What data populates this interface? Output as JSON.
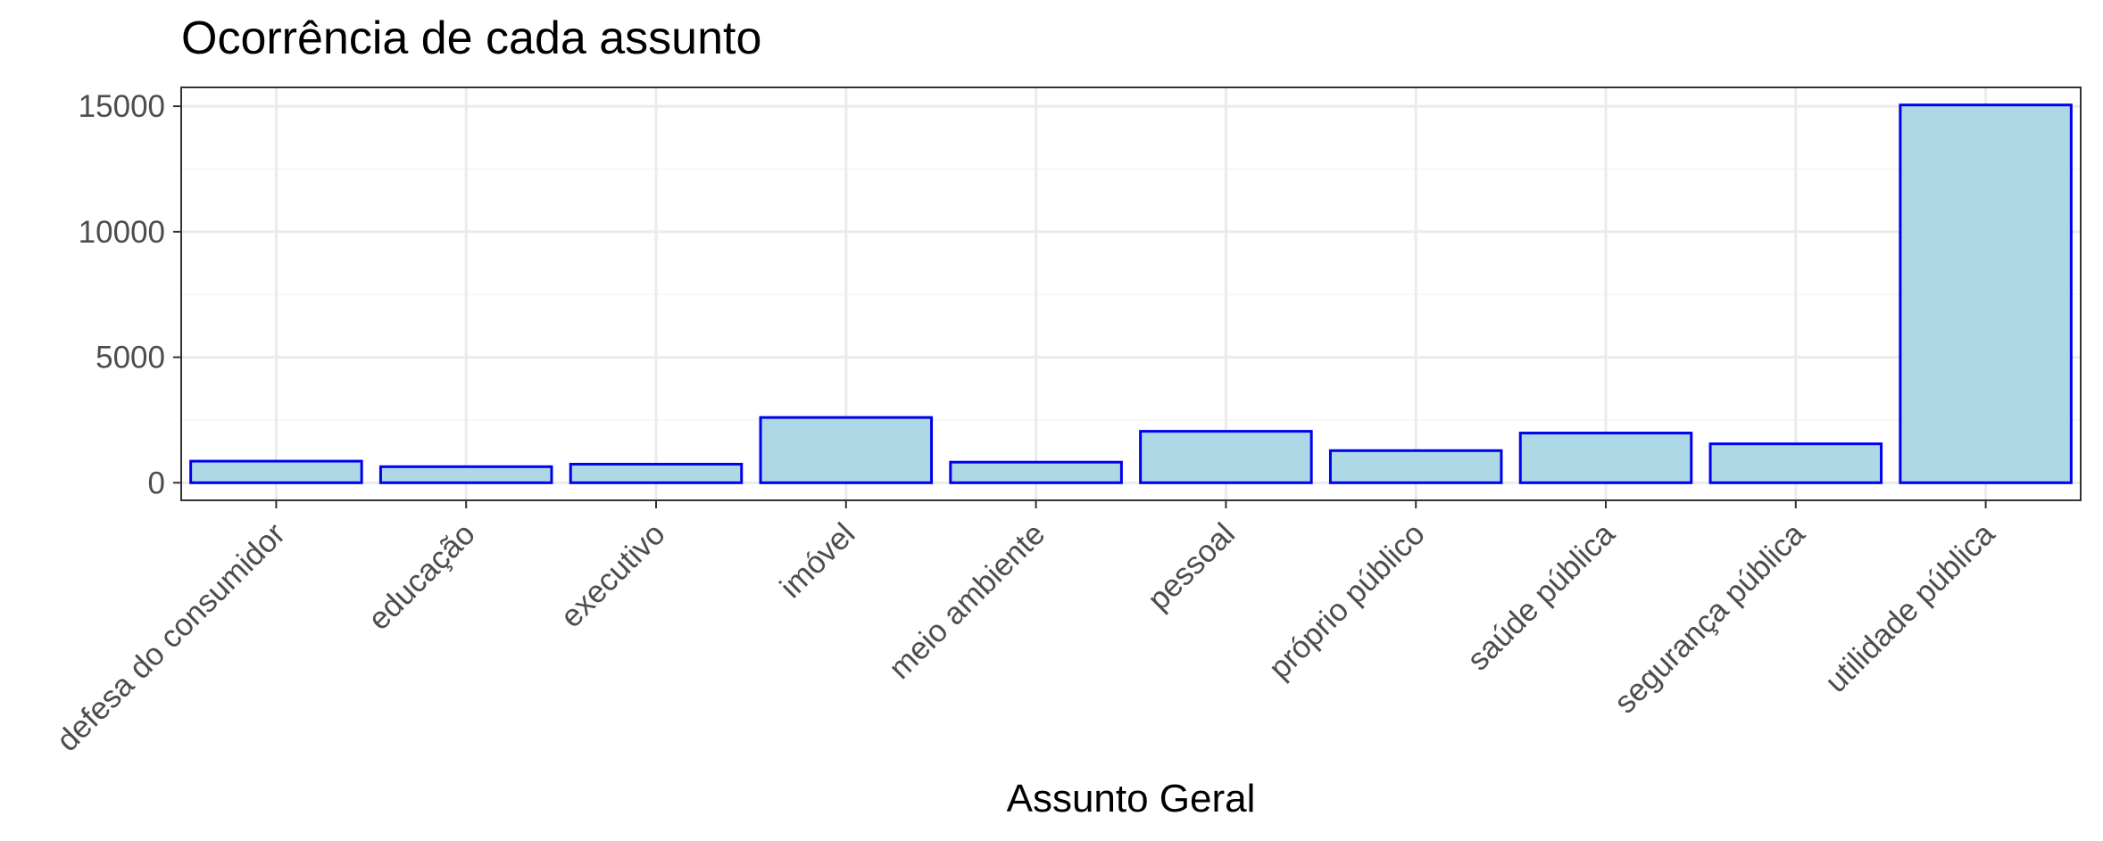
{
  "chart_data": {
    "type": "bar",
    "title": "Ocorrência de cada assunto",
    "xlabel": "Assunto Geral",
    "ylabel": "",
    "categories": [
      "defesa do consumidor",
      "educação",
      "executivo",
      "imóvel",
      "meio ambiente",
      "pessoal",
      "próprio público",
      "saúde pública",
      "segurança pública",
      "utilidade pública"
    ],
    "values": [
      860,
      640,
      740,
      2600,
      820,
      2050,
      1280,
      1980,
      1550,
      15050
    ],
    "ylim": [
      -700,
      15750
    ],
    "yticks": [
      0,
      5000,
      10000,
      15000
    ],
    "ytick_labels": [
      "0",
      "5000",
      "10000",
      "15000"
    ],
    "grid": true,
    "legend": "none",
    "colors": {
      "bar_fill": "#add8e6",
      "bar_stroke": "#0000ee",
      "grid_major": "#ebebeb",
      "grid_minor": "#f4f4f4",
      "panel_border": "#333333",
      "tick_text": "#4d4d4d"
    }
  }
}
